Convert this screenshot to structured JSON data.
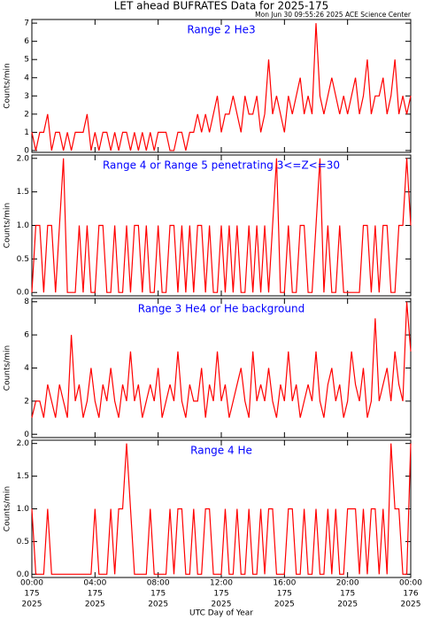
{
  "title": "LET ahead BUFRATES Data for 2025-175",
  "subtitle": "Mon Jun 30 09:55:26 2025 ACE Science Center",
  "x_label": "UTC Day of Year",
  "chart_data": [
    {
      "type": "line",
      "label": "Range 2 He3",
      "y_label": "Counts/min",
      "color": "#ff0000",
      "xlim": [
        0,
        24
      ],
      "xticks": [
        0,
        4,
        8,
        12,
        16,
        20,
        24
      ],
      "ylim": [
        -0.1,
        7.2
      ],
      "yticks": [
        0,
        1,
        2,
        3,
        4,
        5,
        6,
        7
      ],
      "x": [
        0,
        0.25,
        0.5,
        0.75,
        1,
        1.25,
        1.5,
        1.75,
        2,
        2.25,
        2.5,
        2.75,
        3,
        3.25,
        3.5,
        3.75,
        4,
        4.25,
        4.5,
        4.75,
        5,
        5.25,
        5.5,
        5.75,
        6,
        6.25,
        6.5,
        6.75,
        7,
        7.25,
        7.5,
        7.75,
        8,
        8.25,
        8.5,
        8.75,
        9,
        9.25,
        9.5,
        9.75,
        10,
        10.25,
        10.5,
        10.75,
        11,
        11.25,
        11.5,
        11.75,
        12,
        12.25,
        12.5,
        12.75,
        13,
        13.25,
        13.5,
        13.75,
        14,
        14.25,
        14.5,
        14.75,
        15,
        15.25,
        15.5,
        15.75,
        16,
        16.25,
        16.5,
        16.75,
        17,
        17.25,
        17.5,
        17.75,
        18,
        18.25,
        18.5,
        18.75,
        19,
        19.25,
        19.5,
        19.75,
        20,
        20.25,
        20.5,
        20.75,
        21,
        21.25,
        21.5,
        21.75,
        22,
        22.25,
        22.5,
        22.75,
        23,
        23.25,
        23.5,
        23.75,
        24
      ],
      "values": [
        1,
        0,
        1,
        1,
        2,
        0,
        1,
        1,
        0,
        1,
        0,
        1,
        1,
        1,
        2,
        0,
        1,
        0,
        1,
        1,
        0,
        1,
        0,
        1,
        1,
        0,
        1,
        0,
        1,
        0,
        1,
        0,
        1,
        1,
        1,
        0,
        0,
        1,
        1,
        0,
        1,
        1,
        2,
        1,
        2,
        1,
        2,
        3,
        1,
        2,
        2,
        3,
        2,
        1,
        3,
        2,
        2,
        3,
        1,
        2,
        5,
        2,
        3,
        2,
        1,
        3,
        2,
        3,
        4,
        2,
        3,
        2,
        7,
        3,
        2,
        3,
        4,
        3,
        2,
        3,
        2,
        3,
        4,
        2,
        3,
        5,
        2,
        3,
        3,
        4,
        2,
        3,
        5,
        2,
        3,
        2,
        3
      ]
    },
    {
      "type": "line",
      "label": "Range 4 or Range 5 penetrating 3<=Z<=30",
      "y_label": "Counts/min",
      "color": "#ff0000",
      "xlim": [
        0,
        24
      ],
      "xticks": [
        0,
        4,
        8,
        12,
        16,
        20,
        24
      ],
      "ylim": [
        -0.05,
        2.05
      ],
      "yticks": [
        {
          "value": 0,
          "label": "0.0"
        },
        0.5,
        {
          "value": 1,
          "label": "1.0"
        },
        1.5,
        {
          "value": 2,
          "label": "2.0"
        }
      ],
      "x": [
        0,
        0.25,
        0.5,
        0.75,
        1,
        1.25,
        1.5,
        1.75,
        2,
        2.25,
        2.5,
        2.75,
        3,
        3.25,
        3.5,
        3.75,
        4,
        4.25,
        4.5,
        4.75,
        5,
        5.25,
        5.5,
        5.75,
        6,
        6.25,
        6.5,
        6.75,
        7,
        7.25,
        7.5,
        7.75,
        8,
        8.25,
        8.5,
        8.75,
        9,
        9.25,
        9.5,
        9.75,
        10,
        10.25,
        10.5,
        10.75,
        11,
        11.25,
        11.5,
        11.75,
        12,
        12.25,
        12.5,
        12.75,
        13,
        13.25,
        13.5,
        13.75,
        14,
        14.25,
        14.5,
        14.75,
        15,
        15.25,
        15.5,
        15.75,
        16,
        16.25,
        16.5,
        16.75,
        17,
        17.25,
        17.5,
        17.75,
        18,
        18.25,
        18.5,
        18.75,
        19,
        19.25,
        19.5,
        19.75,
        20,
        20.25,
        20.5,
        20.75,
        21,
        21.25,
        21.5,
        21.75,
        22,
        22.25,
        22.5,
        22.75,
        23,
        23.25,
        23.5,
        23.75,
        24
      ],
      "values": [
        0,
        1,
        1,
        0,
        1,
        1,
        0,
        1,
        2,
        0,
        0,
        0,
        1,
        0,
        1,
        0,
        0,
        1,
        1,
        0,
        0,
        1,
        0,
        0,
        1,
        0,
        1,
        1,
        0,
        1,
        0,
        0,
        1,
        0,
        0,
        1,
        1,
        0,
        1,
        0,
        1,
        0,
        1,
        1,
        0,
        1,
        0,
        0,
        1,
        0,
        1,
        0,
        1,
        0,
        0,
        1,
        0,
        1,
        0,
        1,
        0,
        1,
        2,
        0,
        0,
        1,
        0,
        0,
        1,
        1,
        0,
        0,
        1,
        2,
        0,
        1,
        0,
        0,
        1,
        0,
        0,
        0,
        0,
        0,
        1,
        1,
        0,
        1,
        0,
        1,
        1,
        0,
        0,
        1,
        1,
        2,
        1
      ]
    },
    {
      "type": "line",
      "label": "Range 3 He4 or He background",
      "y_label": "Counts/min",
      "color": "#ff0000",
      "xlim": [
        0,
        24
      ],
      "xticks": [
        0,
        4,
        8,
        12,
        16,
        20,
        24
      ],
      "ylim": [
        -0.2,
        8.2
      ],
      "yticks": [
        0,
        2,
        4,
        6,
        8
      ],
      "x": [
        0,
        0.25,
        0.5,
        0.75,
        1,
        1.25,
        1.5,
        1.75,
        2,
        2.25,
        2.5,
        2.75,
        3,
        3.25,
        3.5,
        3.75,
        4,
        4.25,
        4.5,
        4.75,
        5,
        5.25,
        5.5,
        5.75,
        6,
        6.25,
        6.5,
        6.75,
        7,
        7.25,
        7.5,
        7.75,
        8,
        8.25,
        8.5,
        8.75,
        9,
        9.25,
        9.5,
        9.75,
        10,
        10.25,
        10.5,
        10.75,
        11,
        11.25,
        11.5,
        11.75,
        12,
        12.25,
        12.5,
        12.75,
        13,
        13.25,
        13.5,
        13.75,
        14,
        14.25,
        14.5,
        14.75,
        15,
        15.25,
        15.5,
        15.75,
        16,
        16.25,
        16.5,
        16.75,
        17,
        17.25,
        17.5,
        17.75,
        18,
        18.25,
        18.5,
        18.75,
        19,
        19.25,
        19.5,
        19.75,
        20,
        20.25,
        20.5,
        20.75,
        21,
        21.25,
        21.5,
        21.75,
        22,
        22.25,
        22.5,
        22.75,
        23,
        23.25,
        23.5,
        23.75,
        24
      ],
      "values": [
        1,
        2,
        2,
        1,
        3,
        2,
        1,
        3,
        2,
        1,
        6,
        2,
        3,
        1,
        2,
        4,
        2,
        1,
        3,
        2,
        4,
        2,
        1,
        3,
        2,
        5,
        2,
        3,
        1,
        2,
        3,
        2,
        4,
        1,
        2,
        3,
        2,
        5,
        2,
        1,
        3,
        2,
        2,
        4,
        1,
        3,
        2,
        5,
        2,
        3,
        1,
        2,
        3,
        4,
        2,
        1,
        5,
        2,
        3,
        2,
        4,
        2,
        1,
        3,
        2,
        5,
        2,
        3,
        1,
        2,
        3,
        2,
        5,
        2,
        1,
        3,
        4,
        2,
        3,
        1,
        2,
        5,
        3,
        2,
        4,
        1,
        2,
        7,
        2,
        3,
        4,
        2,
        5,
        3,
        2,
        8,
        5
      ]
    },
    {
      "type": "line",
      "label": "Range 4 He",
      "y_label": "Counts/min",
      "color": "#ff0000",
      "xlim": [
        0,
        24
      ],
      "xticks": [
        {
          "value": 0,
          "label": [
            "00:00",
            "175",
            "2025"
          ]
        },
        {
          "value": 4,
          "label": [
            "04:00",
            "175",
            "2025"
          ]
        },
        {
          "value": 8,
          "label": [
            "08:00",
            "175",
            "2025"
          ]
        },
        {
          "value": 12,
          "label": [
            "12:00",
            "175",
            "2025"
          ]
        },
        {
          "value": 16,
          "label": [
            "16:00",
            "175",
            "2025"
          ]
        },
        {
          "value": 20,
          "label": [
            "20:00",
            "175",
            "2025"
          ]
        },
        {
          "value": 24,
          "label": [
            "00:00",
            "176",
            "2025"
          ]
        }
      ],
      "ylim": [
        -0.05,
        2.05
      ],
      "yticks": [
        {
          "value": 0,
          "label": "0.0"
        },
        0.5,
        {
          "value": 1,
          "label": "1.0"
        },
        1.5,
        {
          "value": 2,
          "label": "2.0"
        }
      ],
      "x": [
        0,
        0.25,
        0.5,
        0.75,
        1,
        1.25,
        1.5,
        1.75,
        2,
        2.25,
        2.5,
        2.75,
        3,
        3.25,
        3.5,
        3.75,
        4,
        4.25,
        4.5,
        4.75,
        5,
        5.25,
        5.5,
        5.75,
        6,
        6.25,
        6.5,
        6.75,
        7,
        7.25,
        7.5,
        7.75,
        8,
        8.25,
        8.5,
        8.75,
        9,
        9.25,
        9.5,
        9.75,
        10,
        10.25,
        10.5,
        10.75,
        11,
        11.25,
        11.5,
        11.75,
        12,
        12.25,
        12.5,
        12.75,
        13,
        13.25,
        13.5,
        13.75,
        14,
        14.25,
        14.5,
        14.75,
        15,
        15.25,
        15.5,
        15.75,
        16,
        16.25,
        16.5,
        16.75,
        17,
        17.25,
        17.5,
        17.75,
        18,
        18.25,
        18.5,
        18.75,
        19,
        19.25,
        19.5,
        19.75,
        20,
        20.25,
        20.5,
        20.75,
        21,
        21.25,
        21.5,
        21.75,
        22,
        22.25,
        22.5,
        22.75,
        23,
        23.25,
        23.5,
        23.75,
        24
      ],
      "values": [
        1,
        0,
        0,
        0,
        1,
        0,
        0,
        0,
        0,
        0,
        0,
        0,
        0,
        0,
        0,
        0,
        1,
        0,
        0,
        0,
        1,
        0,
        1,
        1,
        2,
        1,
        0,
        0,
        0,
        0,
        1,
        0,
        0,
        0,
        0,
        1,
        0,
        1,
        1,
        0,
        0,
        1,
        0,
        0,
        1,
        1,
        0,
        0,
        0,
        1,
        0,
        0,
        1,
        0,
        0,
        1,
        0,
        0,
        1,
        0,
        1,
        1,
        0,
        0,
        0,
        1,
        1,
        0,
        0,
        1,
        0,
        0,
        1,
        0,
        0,
        1,
        0,
        1,
        0,
        0,
        1,
        1,
        1,
        0,
        1,
        0,
        1,
        1,
        0,
        1,
        0,
        2,
        1,
        1,
        0,
        0,
        2
      ]
    }
  ]
}
